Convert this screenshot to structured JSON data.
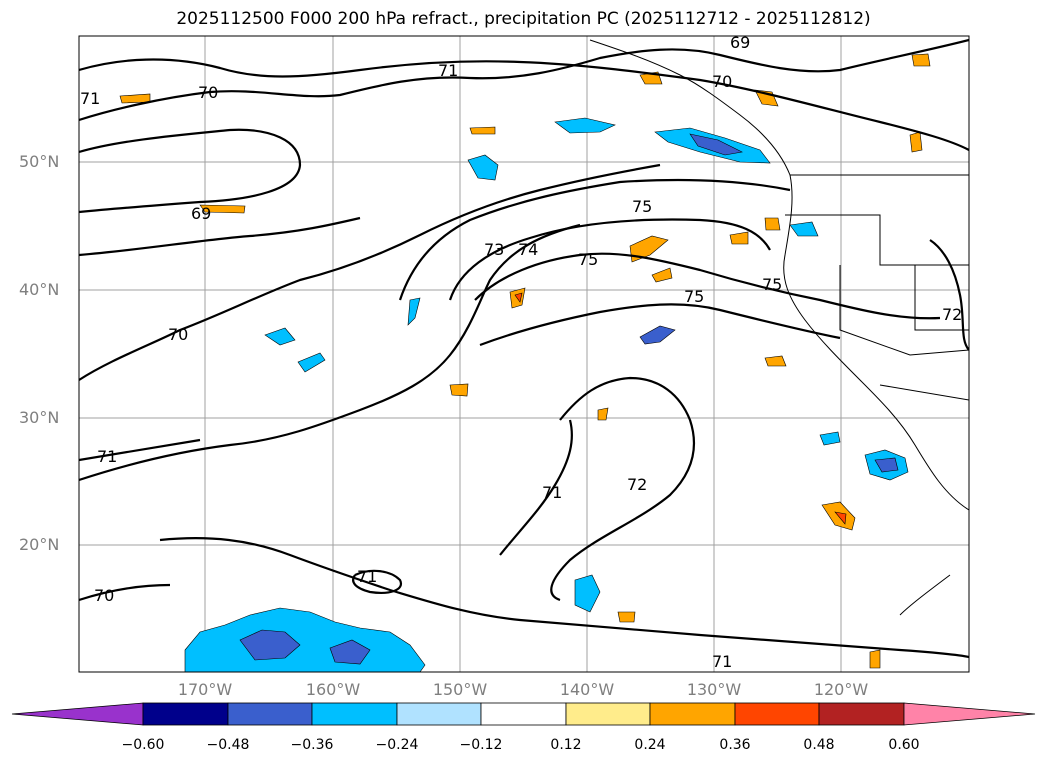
{
  "title": "2025112500 F000 200 hPa refract., precipitation PC (2025112712 - 2025112812)",
  "latitude_labels": [
    "50°N",
    "40°N",
    "30°N",
    "20°N"
  ],
  "longitude_labels": [
    "170°W",
    "160°W",
    "150°W",
    "140°W",
    "130°W",
    "120°W"
  ],
  "contour_labels": [
    "69",
    "70",
    "71",
    "70",
    "69",
    "70",
    "71",
    "73",
    "74",
    "75",
    "75",
    "75",
    "75",
    "72",
    "71",
    "72",
    "71",
    "71",
    "70",
    "71"
  ],
  "colorbar": {
    "ticks": [
      "−0.60",
      "−0.48",
      "−0.36",
      "−0.24",
      "−0.12",
      "0.12",
      "0.24",
      "0.36",
      "0.48",
      "0.60"
    ],
    "colors": [
      "#9932cc",
      "#00008b",
      "#3a5fcd",
      "#00bfff",
      "#b0e2ff",
      "#ffffff",
      "#ffec8b",
      "#ffa500",
      "#ff4500",
      "#b22222",
      "#ff83a8"
    ]
  },
  "map_style": {
    "contour_color": "#000000",
    "gridline_color": "#a0a0a0",
    "coastline_color": "#000000"
  }
}
